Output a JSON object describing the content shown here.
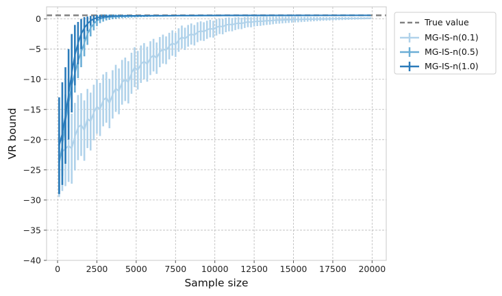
{
  "chart_data": {
    "type": "line",
    "xlabel": "Sample size",
    "ylabel": "VR bound",
    "xlim": [
      -700,
      20900
    ],
    "ylim": [
      -40,
      2
    ],
    "xticks": [
      0,
      2500,
      5000,
      7500,
      10000,
      12500,
      15000,
      17500,
      20000
    ],
    "yticks": [
      0,
      -5,
      -10,
      -15,
      -20,
      -25,
      -30,
      -35,
      -40
    ],
    "grid": true,
    "legend_position": "outside-top-right",
    "reference_line": {
      "name": "True value",
      "y": 0.6,
      "color": "#808080",
      "style": "dashed"
    },
    "series": [
      {
        "name": "MG-IS-n(0.1)",
        "color": "#b0d2ea",
        "x": [
          100,
          300,
          500,
          700,
          900,
          1100,
          1300,
          1500,
          1700,
          1900,
          2100,
          2300,
          2500,
          2700,
          2900,
          3100,
          3300,
          3500,
          3700,
          3900,
          4100,
          4300,
          4500,
          4700,
          4900,
          5100,
          5300,
          5500,
          5700,
          5900,
          6100,
          6300,
          6500,
          6700,
          6900,
          7100,
          7300,
          7500,
          7700,
          7900,
          8100,
          8300,
          8500,
          8700,
          8900,
          9100,
          9300,
          9500,
          9700,
          9900,
          10100,
          10300,
          10500,
          10700,
          10900,
          11100,
          11300,
          11500,
          11700,
          11900,
          12100,
          12300,
          12500,
          12700,
          12900,
          13100,
          13300,
          13500,
          13700,
          13900,
          14100,
          14300,
          14500,
          14700,
          14900,
          15100,
          15300,
          15500,
          15700,
          15900,
          16100,
          16300,
          16500,
          16700,
          16900,
          17100,
          17300,
          17500,
          17700,
          17900,
          18100,
          18300,
          18500,
          18700,
          18900,
          19100,
          19300,
          19500,
          19700,
          19900
        ],
        "y": [
          -23.0,
          -22.0,
          -21.5,
          -21.0,
          -21.5,
          -19.5,
          -18.0,
          -17.5,
          -18.5,
          -16.5,
          -17.0,
          -15.5,
          -14.5,
          -15.0,
          -13.5,
          -13.0,
          -14.0,
          -12.5,
          -11.5,
          -12.0,
          -10.5,
          -10.0,
          -10.5,
          -9.0,
          -8.0,
          -8.5,
          -7.5,
          -7.0,
          -7.5,
          -6.5,
          -6.0,
          -6.5,
          -5.5,
          -5.0,
          -5.2,
          -4.5,
          -4.0,
          -4.3,
          -3.5,
          -3.0,
          -3.3,
          -2.8,
          -2.5,
          -2.7,
          -2.2,
          -2.0,
          -2.1,
          -1.8,
          -1.6,
          -1.7,
          -1.4,
          -1.2,
          -1.3,
          -1.0,
          -0.9,
          -0.95,
          -0.8,
          -0.7,
          -0.75,
          -0.6,
          -0.5,
          -0.55,
          -0.45,
          -0.4,
          -0.4,
          -0.35,
          -0.3,
          -0.3,
          -0.25,
          -0.2,
          -0.2,
          -0.18,
          -0.15,
          -0.14,
          -0.12,
          -0.1,
          -0.1,
          -0.08,
          -0.06,
          -0.05,
          -0.04,
          -0.03,
          -0.02,
          -0.01,
          0.0,
          0.0,
          0.02,
          0.03,
          0.04,
          0.05,
          0.05,
          0.06,
          0.07,
          0.08,
          0.08,
          0.09,
          0.1,
          0.1,
          0.11,
          0.12
        ],
        "err": [
          6.5,
          6.5,
          6.2,
          6.0,
          5.8,
          5.6,
          5.4,
          5.2,
          5.0,
          4.9,
          4.8,
          4.6,
          4.5,
          4.4,
          4.3,
          4.2,
          4.1,
          4.0,
          3.9,
          3.8,
          3.7,
          3.6,
          3.5,
          3.4,
          3.3,
          3.2,
          3.1,
          3.0,
          2.9,
          2.8,
          2.7,
          2.6,
          2.5,
          2.4,
          2.3,
          2.2,
          2.1,
          2.0,
          1.95,
          1.9,
          1.85,
          1.8,
          1.75,
          1.7,
          1.65,
          1.6,
          1.55,
          1.5,
          1.45,
          1.4,
          1.35,
          1.3,
          1.25,
          1.2,
          1.15,
          1.1,
          1.05,
          1.0,
          0.95,
          0.9,
          0.87,
          0.84,
          0.81,
          0.78,
          0.75,
          0.72,
          0.69,
          0.66,
          0.63,
          0.6,
          0.58,
          0.56,
          0.54,
          0.52,
          0.5,
          0.48,
          0.46,
          0.44,
          0.42,
          0.4,
          0.38,
          0.36,
          0.34,
          0.32,
          0.3,
          0.29,
          0.28,
          0.27,
          0.26,
          0.25,
          0.24,
          0.23,
          0.22,
          0.21,
          0.2,
          0.19,
          0.18,
          0.17,
          0.16,
          0.15
        ]
      },
      {
        "name": "MG-IS-n(0.5)",
        "color": "#6aaed6",
        "x": [
          100,
          300,
          500,
          700,
          900,
          1100,
          1300,
          1500,
          1700,
          1900,
          2100,
          2300,
          2500,
          2700,
          2900,
          3100,
          3300,
          3500,
          3700,
          3900,
          4100,
          4300,
          4500,
          4700,
          4900,
          5100,
          5300,
          5500,
          5700,
          5900,
          6100,
          6300,
          6500,
          6700,
          6900,
          7100,
          7300,
          7500,
          7700,
          7900,
          8100,
          8300,
          8500,
          8700,
          8900,
          9100,
          9300,
          9500,
          9700,
          9900,
          10100,
          10300,
          10500,
          10700,
          10900,
          11100,
          11300,
          11500,
          11700,
          11900,
          12100,
          12300,
          12500,
          12700,
          12900,
          13100,
          13300,
          13500,
          13700,
          13900,
          14100,
          14300,
          14500,
          14700,
          14900,
          15100,
          15300,
          15500,
          15700,
          15900,
          16100,
          16300,
          16500,
          16700,
          16900,
          17100,
          17300,
          17500,
          17700,
          17900,
          18100,
          18300,
          18500,
          18700,
          18900,
          19100,
          19300,
          19500,
          19700,
          19900
        ],
        "y": [
          -24.0,
          -21.0,
          -17.0,
          -14.0,
          -11.0,
          -9.0,
          -7.0,
          -5.5,
          -4.0,
          -2.5,
          -1.5,
          -0.8,
          -0.3,
          0.0,
          0.15,
          0.25,
          0.3,
          0.35,
          0.38,
          0.4,
          0.42,
          0.43,
          0.44,
          0.45,
          0.46,
          0.47,
          0.47,
          0.48,
          0.48,
          0.49,
          0.49,
          0.5,
          0.5,
          0.5,
          0.51,
          0.51,
          0.51,
          0.52,
          0.52,
          0.52,
          0.52,
          0.53,
          0.53,
          0.53,
          0.53,
          0.53,
          0.54,
          0.54,
          0.54,
          0.54,
          0.54,
          0.54,
          0.55,
          0.55,
          0.55,
          0.55,
          0.55,
          0.55,
          0.55,
          0.56,
          0.56,
          0.56,
          0.56,
          0.56,
          0.56,
          0.56,
          0.56,
          0.57,
          0.57,
          0.57,
          0.57,
          0.57,
          0.57,
          0.57,
          0.57,
          0.57,
          0.57,
          0.58,
          0.58,
          0.58,
          0.58,
          0.58,
          0.58,
          0.58,
          0.58,
          0.58,
          0.58,
          0.58,
          0.58,
          0.58,
          0.59,
          0.59,
          0.59,
          0.59,
          0.59,
          0.59,
          0.59,
          0.59,
          0.59,
          0.59
        ],
        "err": [
          5.0,
          5.0,
          4.5,
          4.0,
          3.6,
          3.2,
          2.8,
          2.5,
          2.2,
          1.8,
          1.4,
          1.1,
          0.9,
          0.7,
          0.6,
          0.5,
          0.45,
          0.4,
          0.35,
          0.3,
          0.28,
          0.26,
          0.24,
          0.22,
          0.2,
          0.19,
          0.18,
          0.17,
          0.16,
          0.15,
          0.14,
          0.13,
          0.12,
          0.12,
          0.11,
          0.11,
          0.1,
          0.1,
          0.1,
          0.09,
          0.09,
          0.09,
          0.08,
          0.08,
          0.08,
          0.08,
          0.07,
          0.07,
          0.07,
          0.07,
          0.07,
          0.06,
          0.06,
          0.06,
          0.06,
          0.06,
          0.06,
          0.05,
          0.05,
          0.05,
          0.05,
          0.05,
          0.05,
          0.05,
          0.05,
          0.04,
          0.04,
          0.04,
          0.04,
          0.04,
          0.04,
          0.04,
          0.04,
          0.04,
          0.04,
          0.03,
          0.03,
          0.03,
          0.03,
          0.03,
          0.03,
          0.03,
          0.03,
          0.03,
          0.03,
          0.03,
          0.03,
          0.03,
          0.03,
          0.03,
          0.03,
          0.03,
          0.03,
          0.03,
          0.03,
          0.03,
          0.03,
          0.03,
          0.03,
          0.03
        ]
      },
      {
        "name": "MG-IS-n(1.0)",
        "color": "#2b7bba",
        "x": [
          100,
          300,
          500,
          700,
          900,
          1100,
          1300,
          1500,
          1700,
          1900,
          2100,
          2300,
          2500,
          2700,
          2900,
          3100,
          3300,
          3500,
          3700,
          3900,
          4100,
          4300,
          4500,
          4700,
          4900,
          5100,
          5300,
          5500,
          5700,
          5900,
          6100,
          6300,
          6500,
          6700,
          6900,
          7100,
          7300,
          7500,
          7700,
          7900,
          8100,
          8300,
          8500,
          8700,
          8900,
          9100,
          9300,
          9500,
          9700,
          9900,
          10100,
          10300,
          10500,
          10700,
          10900,
          11100,
          11300,
          11500,
          11700,
          11900,
          12100,
          12300,
          12500,
          12700,
          12900,
          13100,
          13300,
          13500,
          13700,
          13900,
          14100,
          14300,
          14500,
          14700,
          14900,
          15100,
          15300,
          15500,
          15700,
          15900,
          16100,
          16300,
          16500,
          16700,
          16900,
          17100,
          17300,
          17500,
          17700,
          17900,
          18100,
          18300,
          18500,
          18700,
          18900,
          19100,
          19300,
          19500,
          19700,
          19900
        ],
        "y": [
          -21.0,
          -19.0,
          -16.0,
          -12.5,
          -9.0,
          -6.0,
          -4.0,
          -2.5,
          -1.5,
          -0.8,
          -0.3,
          0.0,
          0.2,
          0.3,
          0.38,
          0.42,
          0.45,
          0.47,
          0.48,
          0.49,
          0.5,
          0.51,
          0.52,
          0.52,
          0.53,
          0.53,
          0.54,
          0.54,
          0.54,
          0.55,
          0.55,
          0.55,
          0.55,
          0.56,
          0.56,
          0.56,
          0.56,
          0.56,
          0.57,
          0.57,
          0.57,
          0.57,
          0.57,
          0.57,
          0.58,
          0.58,
          0.58,
          0.58,
          0.58,
          0.58,
          0.58,
          0.58,
          0.59,
          0.59,
          0.59,
          0.59,
          0.59,
          0.59,
          0.59,
          0.59,
          0.59,
          0.59,
          0.6,
          0.6,
          0.6,
          0.6,
          0.6,
          0.6,
          0.6,
          0.6,
          0.6,
          0.6,
          0.6,
          0.6,
          0.6,
          0.6,
          0.6,
          0.6,
          0.6,
          0.6,
          0.6,
          0.6,
          0.6,
          0.6,
          0.6,
          0.6,
          0.6,
          0.6,
          0.6,
          0.6,
          0.6,
          0.6,
          0.6,
          0.6,
          0.6,
          0.6,
          0.6,
          0.6,
          0.6,
          0.6
        ],
        "err": [
          8.0,
          8.5,
          8.0,
          7.5,
          6.5,
          5.0,
          3.5,
          2.5,
          1.8,
          1.2,
          0.8,
          0.6,
          0.45,
          0.35,
          0.28,
          0.22,
          0.18,
          0.15,
          0.13,
          0.11,
          0.1,
          0.09,
          0.08,
          0.07,
          0.07,
          0.06,
          0.06,
          0.05,
          0.05,
          0.05,
          0.04,
          0.04,
          0.04,
          0.04,
          0.03,
          0.03,
          0.03,
          0.03,
          0.03,
          0.03,
          0.03,
          0.03,
          0.02,
          0.02,
          0.02,
          0.02,
          0.02,
          0.02,
          0.02,
          0.02,
          0.02,
          0.02,
          0.02,
          0.02,
          0.02,
          0.02,
          0.02,
          0.02,
          0.02,
          0.02,
          0.02,
          0.02,
          0.02,
          0.02,
          0.02,
          0.02,
          0.02,
          0.02,
          0.02,
          0.02,
          0.02,
          0.02,
          0.02,
          0.02,
          0.02,
          0.02,
          0.02,
          0.02,
          0.02,
          0.02,
          0.02,
          0.02,
          0.02,
          0.02,
          0.02,
          0.02,
          0.02,
          0.02,
          0.02,
          0.02,
          0.02,
          0.02,
          0.02,
          0.02,
          0.02,
          0.02,
          0.02,
          0.02,
          0.02,
          0.02
        ]
      }
    ]
  }
}
